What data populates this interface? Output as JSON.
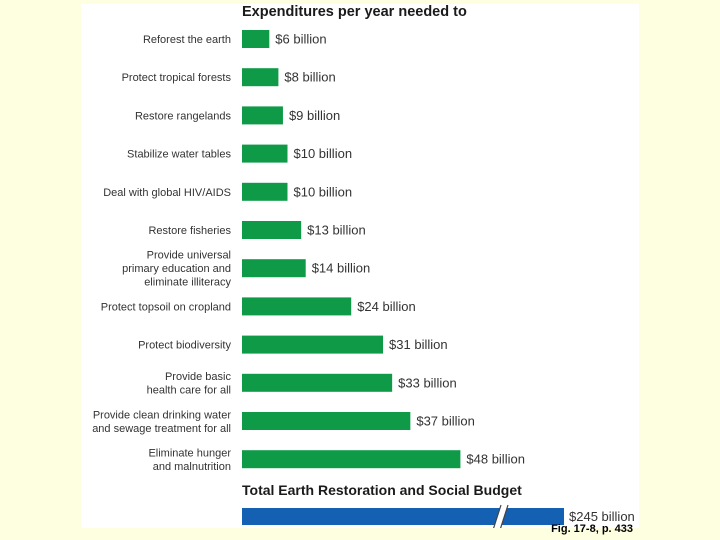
{
  "chart_data": {
    "type": "bar",
    "orientation": "horizontal",
    "title": "Expenditures per year needed to",
    "categories": [
      [
        "Reforest the earth"
      ],
      [
        "Protect tropical forests"
      ],
      [
        "Restore rangelands"
      ],
      [
        "Stabilize water tables"
      ],
      [
        "Deal with global HIV/AIDS"
      ],
      [
        "Restore fisheries"
      ],
      [
        "Provide universal",
        "primary education and",
        "eliminate illiteracy"
      ],
      [
        "Protect topsoil on cropland"
      ],
      [
        "Protect biodiversity"
      ],
      [
        "Provide basic",
        "health care for all"
      ],
      [
        "Provide clean drinking water",
        "and sewage treatment for all"
      ],
      [
        "Eliminate hunger",
        "and malnutrition"
      ]
    ],
    "values": [
      6,
      8,
      9,
      10,
      10,
      13,
      14,
      24,
      31,
      33,
      37,
      48
    ],
    "value_labels": [
      "$6 billion",
      "$8 billion",
      "$9 billion",
      "$10 billion",
      "$10 billion",
      "$13 billion",
      "$14 billion",
      "$24 billion",
      "$31 billion",
      "$33 billion",
      "$37 billion",
      "$48 billion"
    ],
    "unit": "billion US dollars",
    "bar_color": "#0f9a48",
    "total": {
      "label": "Total Earth Restoration and Social Budget",
      "value": 245,
      "value_label": "$245 billion",
      "bar_color": "#1461b4",
      "axis_break": true
    }
  },
  "caption": "Fig. 17-8, p. 433"
}
